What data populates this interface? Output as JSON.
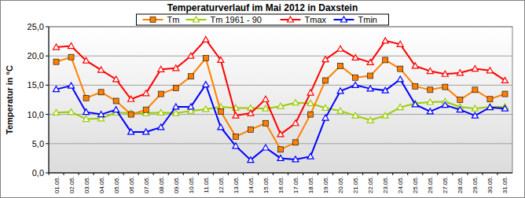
{
  "chart_data": {
    "type": "line",
    "title": "Temperaturverlauf im Mai 2012 in Daxstein",
    "y_label": "Temperatur in °C",
    "categories": [
      "01.05.",
      "02.05.",
      "03.05.",
      "04.05.",
      "05.05.",
      "06.05.",
      "07.05.",
      "08.05.",
      "09.05.",
      "10.05.",
      "11.05.",
      "12.05.",
      "13.05.",
      "14.05.",
      "15.05.",
      "16.05.",
      "17.05.",
      "18.05.",
      "19.05.",
      "20.05.",
      "21.05.",
      "22.05.",
      "23.05.",
      "24.05.",
      "25.05.",
      "26.05.",
      "27.05.",
      "28.05.",
      "29.05.",
      "30.05.",
      "31.05."
    ],
    "series": [
      {
        "name": "Tm",
        "color": "#ff8000",
        "marker": "square",
        "line_style": "solid",
        "values": [
          19.0,
          19.8,
          12.8,
          13.8,
          12.3,
          10.0,
          10.8,
          13.5,
          14.5,
          16.5,
          19.6,
          10.5,
          6.2,
          7.4,
          8.5,
          4.0,
          5.2,
          10.0,
          15.8,
          18.3,
          16.3,
          16.6,
          19.3,
          17.8,
          14.8,
          14.2,
          14.7,
          12.5,
          14.2,
          12.6,
          13.5
        ]
      },
      {
        "name": "Tm 1961 - 90",
        "color": "#99cc00",
        "marker": "triangle",
        "line_style": "solid",
        "values": [
          10.3,
          10.4,
          9.2,
          9.3,
          10.3,
          10.2,
          10.2,
          10.3,
          10.2,
          10.6,
          10.9,
          11.3,
          11.1,
          11.1,
          11.0,
          11.4,
          12.0,
          11.9,
          11.1,
          10.6,
          9.8,
          9.0,
          9.8,
          11.2,
          11.9,
          12.1,
          12.2,
          11.3,
          11.0,
          11.3,
          11.3
        ]
      },
      {
        "name": "Tmax",
        "color": "#ff0000",
        "marker": "triangle",
        "line_style": "solid",
        "values": [
          21.5,
          21.7,
          19.2,
          17.6,
          16.0,
          12.6,
          13.6,
          17.7,
          17.9,
          20.0,
          22.8,
          19.3,
          9.8,
          10.2,
          12.6,
          6.6,
          8.5,
          13.7,
          19.4,
          21.2,
          19.7,
          18.9,
          22.6,
          22.0,
          18.3,
          17.4,
          16.9,
          17.1,
          17.8,
          17.5,
          15.8
        ]
      },
      {
        "name": "Tmin",
        "color": "#0000ff",
        "marker": "triangle",
        "line_style": "solid",
        "values": [
          14.3,
          14.9,
          10.4,
          10.0,
          10.8,
          7.0,
          7.0,
          7.8,
          11.3,
          11.3,
          15.1,
          7.8,
          4.6,
          2.2,
          4.3,
          2.5,
          2.3,
          2.8,
          9.4,
          14.0,
          15.0,
          14.4,
          14.1,
          16.0,
          11.7,
          10.5,
          11.6,
          10.8,
          9.8,
          11.2,
          11.0
        ]
      }
    ],
    "ylim": [
      0,
      25
    ],
    "yticks": [
      {
        "value": 0,
        "label": "0,0"
      },
      {
        "value": 5,
        "label": "5,0"
      },
      {
        "value": 10,
        "label": "10,0"
      },
      {
        "value": 15,
        "label": "15,0"
      },
      {
        "value": 20,
        "label": "20,0"
      },
      {
        "value": 25,
        "label": "25,0"
      }
    ],
    "grid": true,
    "legend": "top"
  }
}
